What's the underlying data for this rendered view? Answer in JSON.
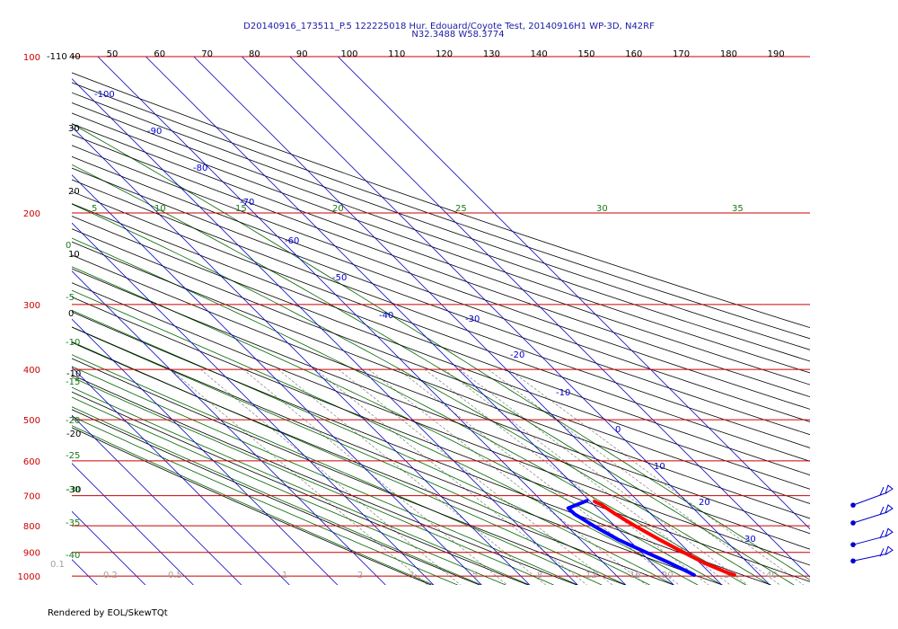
{
  "header": {
    "line1": "D20140916_173511_P.5 122225018 Hur. Edouard/Coyote Test, 20140916H1 WP-3D, N42RF",
    "line2": "N32.3488 W58.3774"
  },
  "footer": "Rendered by EOL/SkewTQt",
  "chart_data": {
    "type": "line",
    "subtype": "skew-t log-p diagram",
    "pressure_levels": [
      100,
      200,
      300,
      400,
      500,
      600,
      700,
      800,
      900,
      1000
    ],
    "pressure_label_color": "#cc0000",
    "isotherm_color": "#0000cc",
    "dry_adiabat_color": "#000000",
    "moist_adiabat_color": "#006600",
    "mixing_ratio_color": "#808080",
    "isobar_color": "#cc0000",
    "top_tick_labels": [
      "50",
      "60",
      "70",
      "80",
      "90",
      "100",
      "110",
      "120",
      "130",
      "140",
      "150",
      "160",
      "170",
      "180",
      "190"
    ],
    "left_dry_adiabat_labels": [
      "-110",
      "40",
      "30",
      "20",
      "10",
      "0",
      "-10",
      "-20",
      "-30"
    ],
    "isotherm_labels": [
      "-100",
      "-90",
      "-80",
      "-70",
      "-60",
      "-50",
      "-40",
      "-30",
      "-20",
      "-10",
      "0",
      "10",
      "20",
      "30"
    ],
    "moist_top_labels": [
      "5",
      "10",
      "15",
      "20",
      "25",
      "30",
      "35"
    ],
    "moist_left_labels": [
      "0",
      "-5",
      "-10",
      "-15",
      "-20",
      "-25",
      "-30",
      "-35",
      "-40"
    ],
    "bottom_labels": [
      "0.1",
      "0.2",
      "0.5",
      "1",
      "2",
      "3",
      "5",
      "8",
      "12",
      "16",
      "20",
      "30",
      "40"
    ],
    "grid": true,
    "series": [
      {
        "kind": "temperature",
        "color": "#ff0000",
        "points": [
          {
            "p": 718,
            "t": 10.9
          },
          {
            "p": 722,
            "t": 11.1
          },
          {
            "p": 728,
            "t": 11.6
          },
          {
            "p": 760,
            "t": 12.6
          },
          {
            "p": 800,
            "t": 14.2
          },
          {
            "p": 850,
            "t": 16.4
          },
          {
            "p": 900,
            "t": 18.8
          },
          {
            "p": 945,
            "t": 21.0
          },
          {
            "p": 980,
            "t": 23.4
          },
          {
            "p": 995,
            "t": 24.7
          }
        ]
      },
      {
        "kind": "dewpoint",
        "color": "#0000ff",
        "points": [
          {
            "p": 716,
            "t": 9.4
          },
          {
            "p": 740,
            "t": 4.0
          },
          {
            "p": 760,
            "t": 4.1
          },
          {
            "p": 800,
            "t": 5.6
          },
          {
            "p": 850,
            "t": 7.8
          },
          {
            "p": 900,
            "t": 11.0
          },
          {
            "p": 940,
            "t": 13.5
          },
          {
            "p": 975,
            "t": 15.4
          },
          {
            "p": 995,
            "t": 16.3
          }
        ]
      }
    ],
    "wind_barbs": [
      {
        "p": 730,
        "direction": 250,
        "speed_kt": 15
      },
      {
        "p": 790,
        "direction": 250,
        "speed_kt": 15
      },
      {
        "p": 870,
        "direction": 230,
        "speed_kt": 15
      },
      {
        "p": 935,
        "direction": 220,
        "speed_kt": 15
      }
    ]
  }
}
